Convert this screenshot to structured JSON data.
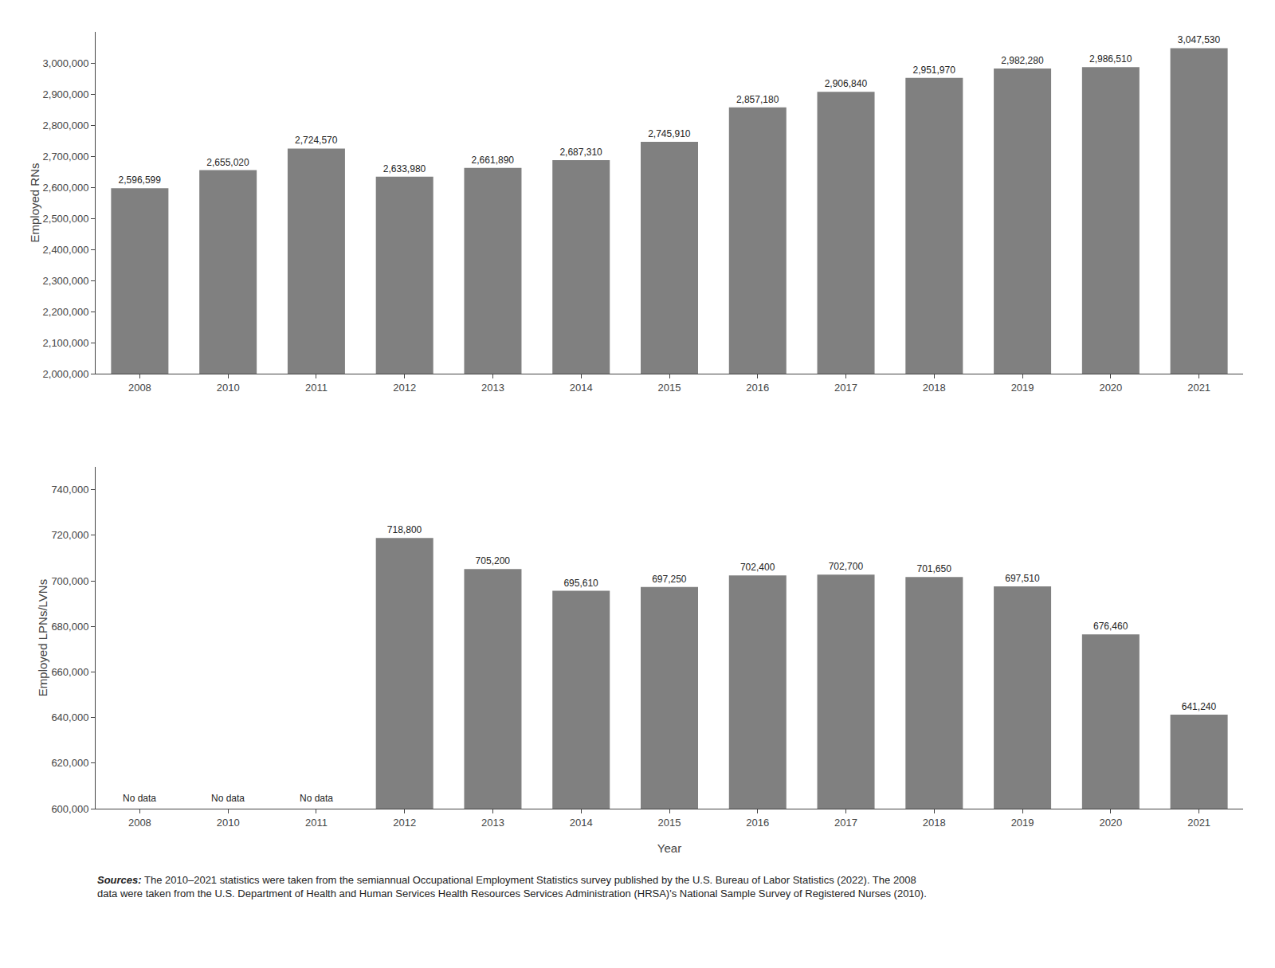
{
  "chart_data": [
    {
      "type": "bar",
      "categories": [
        "2008",
        "2010",
        "2011",
        "2012",
        "2013",
        "2014",
        "2015",
        "2016",
        "2017",
        "2018",
        "2019",
        "2020",
        "2021"
      ],
      "values": [
        2596599,
        2655020,
        2724570,
        2633980,
        2661890,
        2687310,
        2745910,
        2857180,
        2906840,
        2951970,
        2982280,
        2986510,
        3047530
      ],
      "value_labels": [
        "2,596,599",
        "2,655,020",
        "2,724,570",
        "2,633,980",
        "2,661,890",
        "2,687,310",
        "2,745,910",
        "2,857,180",
        "2,906,840",
        "2,951,970",
        "2,982,280",
        "2,986,510",
        "3,047,530"
      ],
      "color": "#808080",
      "ylabel": "Employed RNs",
      "ylim": [
        2000000,
        3100000
      ],
      "yticks": [
        {
          "value": 2000000,
          "label": "2,000,000"
        },
        {
          "value": 2100000,
          "label": "2,100,000"
        },
        {
          "value": 2200000,
          "label": "2,200,000"
        },
        {
          "value": 2300000,
          "label": "2,300,000"
        },
        {
          "value": 2400000,
          "label": "2,400,000"
        },
        {
          "value": 2500000,
          "label": "2,500,000"
        },
        {
          "value": 2600000,
          "label": "2,600,000"
        },
        {
          "value": 2700000,
          "label": "2,700,000"
        },
        {
          "value": 2800000,
          "label": "2,800,000"
        },
        {
          "value": 2900000,
          "label": "2,900,000"
        },
        {
          "value": 3000000,
          "label": "3,000,000"
        }
      ],
      "grid": false,
      "data_labels": true
    },
    {
      "type": "bar",
      "categories": [
        "2008",
        "2010",
        "2011",
        "2012",
        "2013",
        "2014",
        "2015",
        "2016",
        "2017",
        "2018",
        "2019",
        "2020",
        "2021"
      ],
      "values": [
        null,
        null,
        null,
        718800,
        705200,
        695610,
        697250,
        702400,
        702700,
        701650,
        697510,
        676460,
        641240
      ],
      "value_labels": [
        "No data",
        "No data",
        "No data",
        "718,800",
        "705,200",
        "695,610",
        "697,250",
        "702,400",
        "702,700",
        "701,650",
        "697,510",
        "676,460",
        "641,240"
      ],
      "color": "#808080",
      "xlabel": "Year",
      "ylabel": "Employed LPNs/LVNs",
      "ylim": [
        600000,
        750000
      ],
      "yticks": [
        {
          "value": 600000,
          "label": "600,000"
        },
        {
          "value": 620000,
          "label": "620,000"
        },
        {
          "value": 640000,
          "label": "640,000"
        },
        {
          "value": 660000,
          "label": "660,000"
        },
        {
          "value": 680000,
          "label": "680,000"
        },
        {
          "value": 700000,
          "label": "700,000"
        },
        {
          "value": 720000,
          "label": "720,000"
        },
        {
          "value": 740000,
          "label": "740,000"
        }
      ],
      "grid": false,
      "data_labels": true,
      "annotations": [
        "Sources:",
        "The 2010–2021 statistics were taken from the semiannual Occupational Employment Statistics survey published by the U.S. Bureau of Labor Statistics (2022). The 2008 data were taken from the U.S. Department of Health and Human Services Health Resources Services Administration (HRSA)'s National Sample Survey of Registered Nurses (2010)."
      ]
    }
  ]
}
